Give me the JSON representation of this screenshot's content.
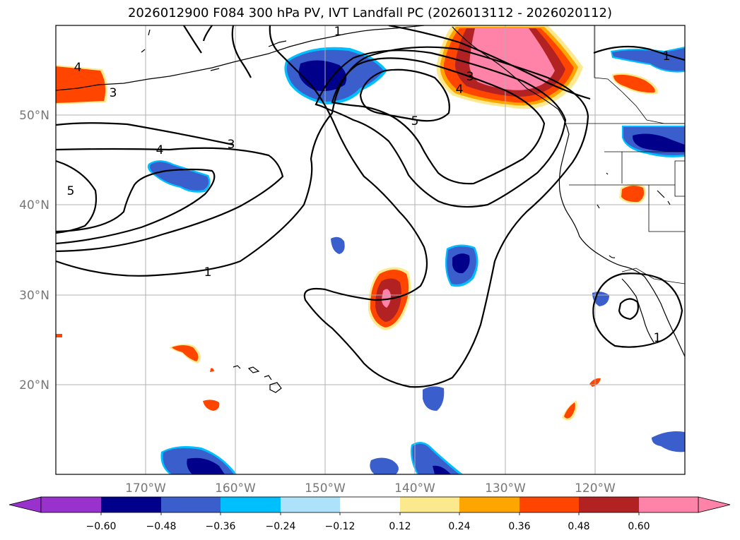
{
  "title": "2026012900 F084 300 hPa PV, IVT Landfall PC (2026013112 - 2026020112)",
  "colors": {
    "pos1": "#fde98d",
    "pos2": "#ffa500",
    "pos3": "#ff4500",
    "pos4": "#b22222",
    "pos5": "#ff82a9",
    "neg1": "#aee2fa",
    "neg2": "#00bfff",
    "neg3": "#3a5fcd",
    "neg4": "#00008b",
    "neg5": "#9932cc"
  },
  "lon_labels": [
    "170°W",
    "160°W",
    "150°W",
    "140°W",
    "130°W",
    "120°W"
  ],
  "lat_labels": [
    "50°N",
    "40°N",
    "30°N",
    "20°N"
  ],
  "contour_labels": [
    "1",
    "1",
    "1",
    "3",
    "3",
    "3",
    "4",
    "4",
    "4",
    "5",
    "5",
    "1"
  ],
  "colorbar": {
    "ticks": [
      "−0.60",
      "−0.48",
      "−0.36",
      "−0.24",
      "−0.12",
      "0.12",
      "0.24",
      "0.36",
      "0.48",
      "0.60"
    ],
    "colors": [
      "#9932cc",
      "#00008b",
      "#3a5fcd",
      "#00bfff",
      "#aee2fa",
      "#ffffff",
      "#fde98d",
      "#ffa500",
      "#ff4500",
      "#b22222",
      "#ff82a9"
    ]
  }
}
